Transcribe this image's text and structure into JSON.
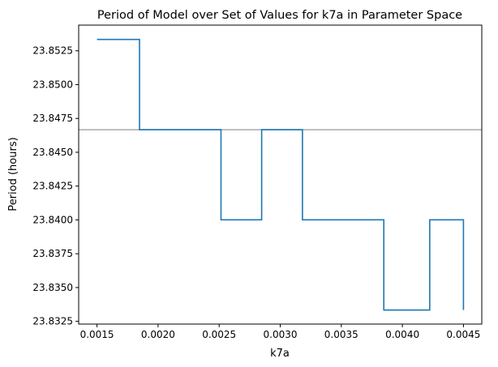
{
  "chart_data": {
    "type": "line",
    "title": "Period of Model over Set of Values for k7a in Parameter Space",
    "xlabel": "k7a",
    "ylabel": "Period (hours)",
    "xlim": [
      0.00135,
      0.00465
    ],
    "ylim": [
      23.8323,
      23.8544
    ],
    "xticks": [
      0.0015,
      0.002,
      0.0025,
      0.003,
      0.0035,
      0.004,
      0.0045
    ],
    "xtick_labels": [
      "0.0015",
      "0.0020",
      "0.0025",
      "0.0030",
      "0.0035",
      "0.0040",
      "0.0045"
    ],
    "yticks": [
      23.8325,
      23.835,
      23.8375,
      23.84,
      23.8425,
      23.845,
      23.8475,
      23.85,
      23.8525
    ],
    "ytick_labels": [
      "23.8325",
      "23.8350",
      "23.8375",
      "23.8400",
      "23.8425",
      "23.8450",
      "23.8475",
      "23.8500",
      "23.8525"
    ],
    "grid": false,
    "series": [
      {
        "color": "#1f77b4",
        "x": [
          0.0015,
          0.001848,
          0.001848,
          0.002515,
          0.002515,
          0.002848,
          0.002848,
          0.003182,
          0.003182,
          0.003848,
          0.003848,
          0.004224,
          0.004224,
          0.0045,
          0.0045
        ],
        "y": [
          23.85334,
          23.85334,
          23.84667,
          23.84667,
          23.84001,
          23.84001,
          23.84667,
          23.84667,
          23.84001,
          23.84001,
          23.83334,
          23.83334,
          23.84001,
          23.84001,
          23.83334
        ]
      }
    ],
    "reference_line": {
      "y": 23.84667,
      "color": "#aaaaaa"
    }
  }
}
